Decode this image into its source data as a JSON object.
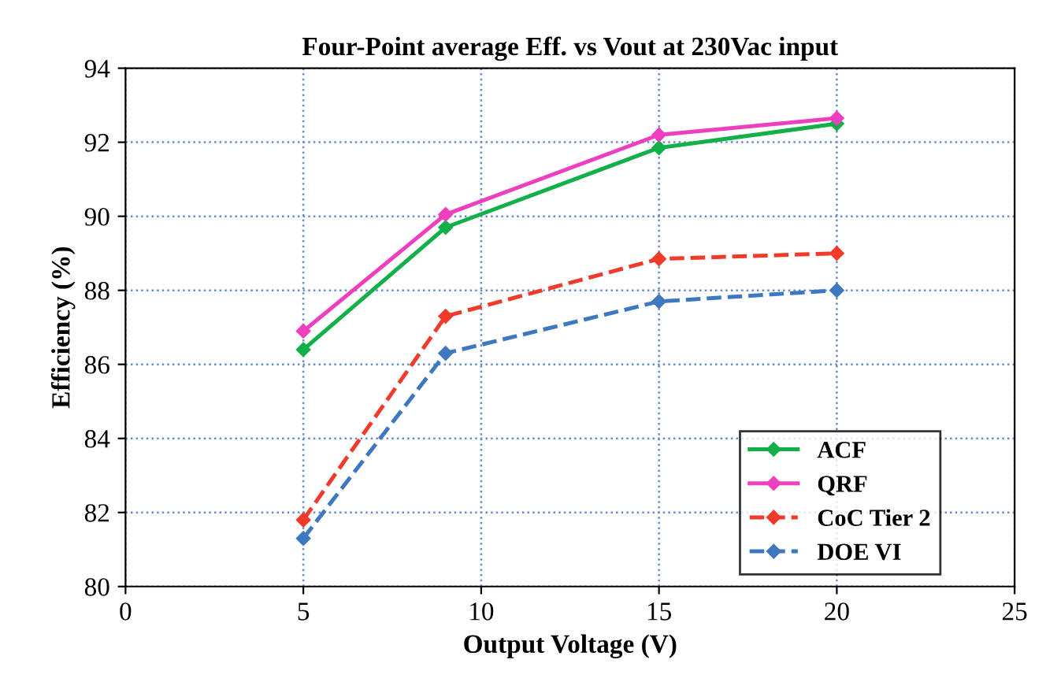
{
  "chart_data": {
    "type": "line",
    "title": "Four-Point average Eff. vs Vout at 230Vac input",
    "xlabel": "Output Voltage (V)",
    "ylabel": "Efficiency (%)",
    "x": [
      5,
      9,
      15,
      20
    ],
    "series": [
      {
        "name": "ACF",
        "color": "#13b04a",
        "values": [
          86.4,
          89.7,
          91.85,
          92.5
        ],
        "line_style": "solid"
      },
      {
        "name": "QRF",
        "color": "#ee3fbf",
        "values": [
          86.9,
          90.05,
          92.2,
          92.65
        ],
        "line_style": "solid"
      },
      {
        "name": "CoC Tier 2",
        "color": "#f03a2a",
        "values": [
          81.8,
          87.3,
          88.85,
          89.0
        ],
        "line_style": "dashed"
      },
      {
        "name": "DOE VI",
        "color": "#3d78c0",
        "values": [
          81.3,
          86.3,
          87.7,
          88.0
        ],
        "line_style": "dashed"
      }
    ],
    "xlim": [
      0,
      25
    ],
    "xticks": [
      0,
      5,
      10,
      15,
      20,
      25
    ],
    "ylim": [
      80,
      94
    ],
    "yticks": [
      80,
      82,
      84,
      86,
      88,
      90,
      92,
      94
    ],
    "grid": true,
    "legend": "lower right",
    "marker": "diamond"
  }
}
